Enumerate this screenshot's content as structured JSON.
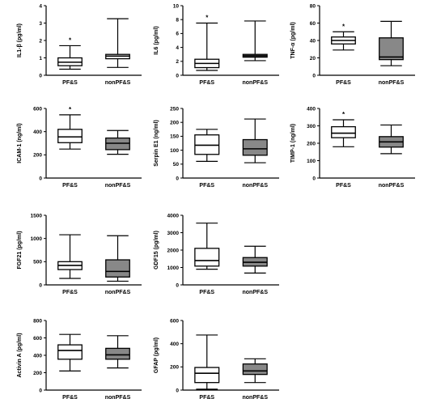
{
  "chart_data": [
    {
      "type": "boxplot",
      "ylabel": "IL1-β (pg/ml)",
      "ylim": [
        0,
        4
      ],
      "yticks": [
        0,
        1,
        2,
        3,
        4
      ],
      "categories": [
        "PF&S",
        "nonPF&S"
      ],
      "boxes": [
        {
          "label": "PF&S",
          "min": 0.35,
          "q1": 0.55,
          "median": 0.75,
          "q3": 1.0,
          "max": 1.7,
          "fill": "#ffffff",
          "star": "*"
        },
        {
          "label": "nonPF&S",
          "min": 0.45,
          "q1": 0.95,
          "median": 1.1,
          "q3": 1.2,
          "max": 3.25,
          "fill": "#ffffff",
          "star": ""
        }
      ]
    },
    {
      "type": "boxplot",
      "ylabel": "IL6 (pg/ml)",
      "ylim": [
        0,
        10
      ],
      "yticks": [
        0,
        2,
        4,
        6,
        8,
        10
      ],
      "categories": [
        "PF&S",
        "nonPF&S"
      ],
      "boxes": [
        {
          "label": "PF&S",
          "min": 0.7,
          "q1": 1.1,
          "median": 1.7,
          "q3": 2.3,
          "max": 7.5,
          "fill": "#ffffff",
          "star": "*"
        },
        {
          "label": "nonPF&S",
          "min": 2.1,
          "q1": 2.6,
          "median": 2.8,
          "q3": 3.0,
          "max": 7.8,
          "fill": "#888888",
          "star": ""
        }
      ]
    },
    {
      "type": "boxplot",
      "ylabel": "TNF-α (pg/ml)",
      "ylim": [
        0,
        80
      ],
      "yticks": [
        0,
        20,
        40,
        60,
        80
      ],
      "categories": [
        "PF&S",
        "nonPF&S"
      ],
      "boxes": [
        {
          "label": "PF&S",
          "min": 29,
          "q1": 36,
          "median": 40,
          "q3": 44,
          "max": 50,
          "fill": "#ffffff",
          "star": "*"
        },
        {
          "label": "nonPF&S",
          "min": 11,
          "q1": 18,
          "median": 21,
          "q3": 43,
          "max": 62,
          "fill": "#888888",
          "star": ""
        }
      ]
    },
    {
      "type": "boxplot",
      "ylabel": "ICAM-1 (ng/ml)",
      "ylim": [
        0,
        600
      ],
      "yticks": [
        0,
        200,
        400,
        600
      ],
      "categories": [
        "PF&S",
        "nonPF&S"
      ],
      "boxes": [
        {
          "label": "PF&S",
          "min": 250,
          "q1": 305,
          "median": 355,
          "q3": 420,
          "max": 545,
          "fill": "#ffffff",
          "star": "*"
        },
        {
          "label": "nonPF&S",
          "min": 205,
          "q1": 245,
          "median": 300,
          "q3": 345,
          "max": 410,
          "fill": "#888888",
          "star": ""
        }
      ]
    },
    {
      "type": "boxplot",
      "ylabel": "Serpin E1 (ng/ml)",
      "ylim": [
        0,
        250
      ],
      "yticks": [
        0,
        50,
        100,
        150,
        200,
        250
      ],
      "categories": [
        "PF&S",
        "nonPF&S"
      ],
      "boxes": [
        {
          "label": "PF&S",
          "min": 60,
          "q1": 85,
          "median": 118,
          "q3": 155,
          "max": 175,
          "fill": "#ffffff",
          "star": ""
        },
        {
          "label": "nonPF&S",
          "min": 55,
          "q1": 82,
          "median": 105,
          "q3": 138,
          "max": 212,
          "fill": "#888888",
          "star": ""
        }
      ]
    },
    {
      "type": "boxplot",
      "ylabel": "TIMP-1 (ng/ml)",
      "ylim": [
        0,
        400
      ],
      "yticks": [
        0,
        100,
        200,
        300,
        400
      ],
      "categories": [
        "PF&S",
        "nonPF&S"
      ],
      "boxes": [
        {
          "label": "PF&S",
          "min": 180,
          "q1": 232,
          "median": 258,
          "q3": 295,
          "max": 335,
          "fill": "#ffffff",
          "star": "*"
        },
        {
          "label": "nonPF&S",
          "min": 140,
          "q1": 178,
          "median": 208,
          "q3": 238,
          "max": 305,
          "fill": "#888888",
          "star": ""
        }
      ]
    },
    {
      "type": "boxplot",
      "ylabel": "FGF21 (pg/ml)",
      "ylim": [
        0,
        1500
      ],
      "yticks": [
        0,
        500,
        1000,
        1500
      ],
      "categories": [
        "PF&S",
        "nonPF&S"
      ],
      "boxes": [
        {
          "label": "PF&S",
          "min": 140,
          "q1": 330,
          "median": 420,
          "q3": 500,
          "max": 1080,
          "fill": "#ffffff",
          "star": ""
        },
        {
          "label": "nonPF&S",
          "min": 80,
          "q1": 170,
          "median": 290,
          "q3": 540,
          "max": 1060,
          "fill": "#888888",
          "star": ""
        }
      ]
    },
    {
      "type": "boxplot",
      "ylabel": "GDF15 (pg/ml)",
      "ylim": [
        0,
        4000
      ],
      "yticks": [
        0,
        1000,
        2000,
        3000,
        4000
      ],
      "categories": [
        "PF&S",
        "nonPF&S"
      ],
      "boxes": [
        {
          "label": "PF&S",
          "min": 900,
          "q1": 1080,
          "median": 1400,
          "q3": 2100,
          "max": 3550,
          "fill": "#ffffff",
          "star": ""
        },
        {
          "label": "nonPF&S",
          "min": 680,
          "q1": 1080,
          "median": 1300,
          "q3": 1570,
          "max": 2220,
          "fill": "#888888",
          "star": ""
        }
      ]
    },
    {
      "type": "boxplot",
      "ylabel": "Activin A (pg/ml)",
      "ylim": [
        0,
        800
      ],
      "yticks": [
        0,
        200,
        400,
        600,
        800
      ],
      "categories": [
        "PF&S",
        "nonPF&S"
      ],
      "boxes": [
        {
          "label": "PF&S",
          "min": 220,
          "q1": 355,
          "median": 455,
          "q3": 520,
          "max": 640,
          "fill": "#ffffff",
          "star": ""
        },
        {
          "label": "nonPF&S",
          "min": 255,
          "q1": 355,
          "median": 405,
          "q3": 480,
          "max": 625,
          "fill": "#888888",
          "star": ""
        }
      ]
    },
    {
      "type": "boxplot",
      "ylabel": "GFAP (pg/ml)",
      "ylim": [
        0,
        600
      ],
      "yticks": [
        0,
        200,
        400,
        600
      ],
      "categories": [
        "PF&S",
        "nonPF&S"
      ],
      "boxes": [
        {
          "label": "PF&S",
          "min": 8,
          "q1": 65,
          "median": 145,
          "q3": 195,
          "max": 475,
          "fill": "#ffffff",
          "star": ""
        },
        {
          "label": "nonPF&S",
          "min": 65,
          "q1": 135,
          "median": 165,
          "q3": 225,
          "max": 270,
          "fill": "#888888",
          "star": ""
        }
      ]
    }
  ]
}
